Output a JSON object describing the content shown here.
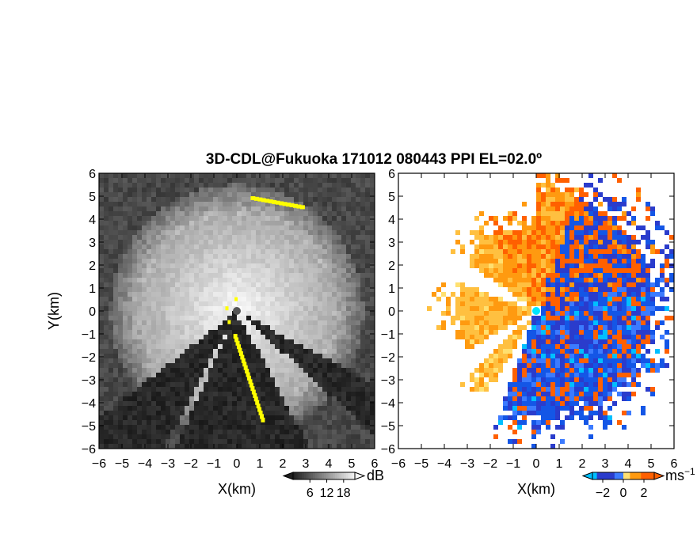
{
  "title": "3D-CDL@Fukuoka 171012 080443 PPI EL=02.0º",
  "chart_data": [
    {
      "type": "heatmap",
      "name": "backscatter-ppi",
      "xlabel": "X(km)",
      "ylabel": "Y(km)",
      "xlim": [
        -6,
        6
      ],
      "ylim": [
        -6,
        6
      ],
      "xticks": [
        "−6",
        "−5",
        "−4",
        "−3",
        "−2",
        "−1",
        "0",
        "1",
        "2",
        "3",
        "4",
        "5",
        "6"
      ],
      "yticks": [
        "6",
        "5",
        "4",
        "3",
        "2",
        "1",
        "0",
        "−1",
        "−2",
        "−3",
        "−4",
        "−5",
        "−6"
      ],
      "colorbar": {
        "unit": "dB",
        "ticks": [
          "6",
          "12",
          "18"
        ],
        "tick_values": [
          6,
          12,
          18
        ],
        "range": [
          0,
          22
        ],
        "colormap": "gray"
      },
      "blocked_sectors_deg": [
        [
          118,
          132
        ],
        [
          208,
          232
        ],
        [
          196,
          204
        ]
      ],
      "highlight_color": "#ffff00",
      "radar_marker_color": "#555555"
    },
    {
      "type": "heatmap",
      "name": "doppler-velocity-ppi",
      "xlabel": "X(km)",
      "xlim": [
        -6,
        6
      ],
      "ylim": [
        -6,
        6
      ],
      "xticks": [
        "−6",
        "−5",
        "−4",
        "−3",
        "−2",
        "−1",
        "0",
        "1",
        "2",
        "3",
        "4",
        "5",
        "6"
      ],
      "yticks": [
        "6",
        "5",
        "4",
        "3",
        "2",
        "1",
        "0",
        "−1",
        "−2",
        "−3",
        "−4",
        "−5",
        "−6"
      ],
      "colorbar": {
        "unit": "ms",
        "unit_exponent": "−1",
        "ticks": [
          "−2",
          "0",
          "2"
        ],
        "tick_values": [
          -2,
          0,
          2
        ],
        "range": [
          -3,
          3
        ],
        "colormap": "blue-orange"
      },
      "dominant_flow": "positive (orange) west/north-west, negative (blue) east/south-east",
      "radar_marker_color": "#00e5ff"
    }
  ]
}
